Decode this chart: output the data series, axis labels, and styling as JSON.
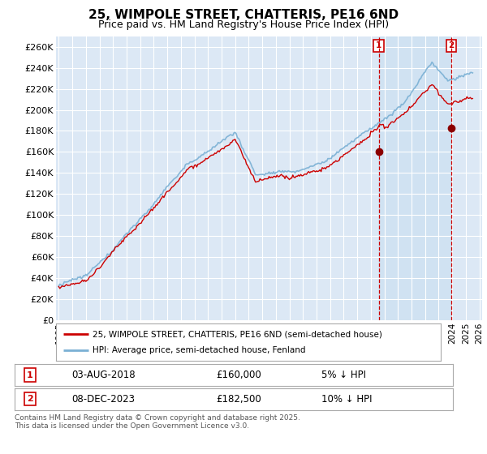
{
  "title": "25, WIMPOLE STREET, CHATTERIS, PE16 6ND",
  "subtitle": "Price paid vs. HM Land Registry's House Price Index (HPI)",
  "ylim": [
    0,
    270000
  ],
  "yticks": [
    0,
    20000,
    40000,
    60000,
    80000,
    100000,
    120000,
    140000,
    160000,
    180000,
    200000,
    220000,
    240000,
    260000
  ],
  "ytick_labels": [
    "£0",
    "£20K",
    "£40K",
    "£60K",
    "£80K",
    "£100K",
    "£120K",
    "£140K",
    "£160K",
    "£180K",
    "£200K",
    "£220K",
    "£240K",
    "£260K"
  ],
  "xlim_start": 1994.8,
  "xlim_end": 2026.2,
  "sale1_date": "03-AUG-2018",
  "sale1_price": 160000,
  "sale1_note": "5% ↓ HPI",
  "sale1_x": 2018.58,
  "sale2_date": "08-DEC-2023",
  "sale2_price": 182500,
  "sale2_note": "10% ↓ HPI",
  "sale2_x": 2023.93,
  "line_red_color": "#cc0000",
  "line_blue_color": "#7ab0d4",
  "background_color": "#dce8f5",
  "plot_bg_color": "#dce8f5",
  "highlight_bg": "#c8dff0",
  "grid_color": "#ffffff",
  "legend1_label": "25, WIMPOLE STREET, CHATTERIS, PE16 6ND (semi-detached house)",
  "legend2_label": "HPI: Average price, semi-detached house, Fenland",
  "footer": "Contains HM Land Registry data © Crown copyright and database right 2025.\nThis data is licensed under the Open Government Licence v3.0.",
  "title_fontsize": 11,
  "subtitle_fontsize": 9
}
